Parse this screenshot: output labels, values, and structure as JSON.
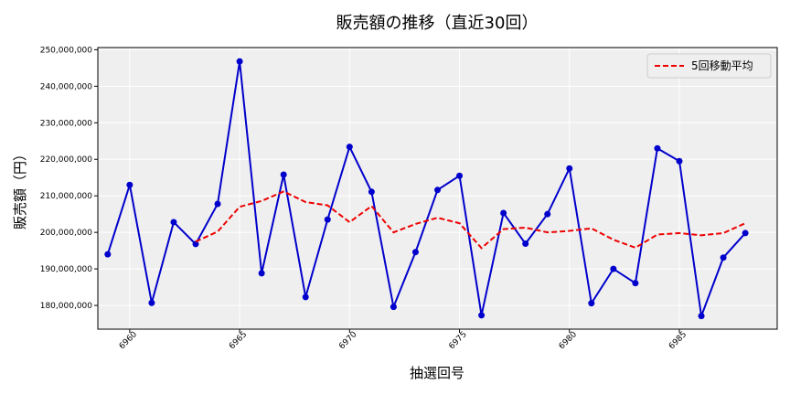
{
  "chart_data": {
    "type": "line",
    "title": "販売額の推移（直近30回）",
    "xlabel": "抽選回号",
    "ylabel": "販売額（円）",
    "x": [
      6959,
      6960,
      6961,
      6962,
      6963,
      6964,
      6965,
      6966,
      6967,
      6968,
      6969,
      6970,
      6971,
      6972,
      6973,
      6974,
      6975,
      6976,
      6977,
      6978,
      6979,
      6980,
      6981,
      6982,
      6983,
      6984,
      6985,
      6986,
      6987,
      6988
    ],
    "xticks": [
      "6960",
      "6965",
      "6970",
      "6975",
      "6980",
      "6985"
    ],
    "yticks": [
      "180,000,000",
      "190,000,000",
      "200,000,000",
      "210,000,000",
      "220,000,000",
      "230,000,000",
      "240,000,000",
      "250,000,000"
    ],
    "xlim": [
      6958.55,
      6989.45
    ],
    "ylim": [
      173500000,
      250600000
    ],
    "grid": true,
    "legend_position": "top-right",
    "series": [
      {
        "name": "",
        "color": "#0000cc",
        "style": "solid",
        "markers": true,
        "values": [
          194000000,
          213000000,
          180700000,
          202800000,
          196800000,
          207800000,
          246800000,
          188800000,
          215800000,
          182300000,
          203500000,
          223400000,
          211100000,
          179600000,
          194600000,
          211600000,
          215500000,
          177300000,
          205300000,
          196900000,
          205000000,
          217500000,
          180600000,
          190000000,
          186100000,
          223000000,
          219500000,
          177100000,
          193100000,
          199800000
        ]
      },
      {
        "name": "5回移動平均",
        "color": "#ee0000",
        "style": "dashed",
        "markers": false,
        "values": [
          null,
          null,
          null,
          null,
          197460000,
          200220000,
          207000000,
          208600000,
          211200000,
          208300000,
          207400000,
          202800000,
          207200000,
          200000000,
          202300000,
          204000000,
          202500000,
          195700000,
          200900000,
          201300000,
          200000000,
          200400000,
          201100000,
          198000000,
          195800000,
          199400000,
          199800000,
          199200000,
          199800000,
          202500000
        ]
      }
    ]
  }
}
